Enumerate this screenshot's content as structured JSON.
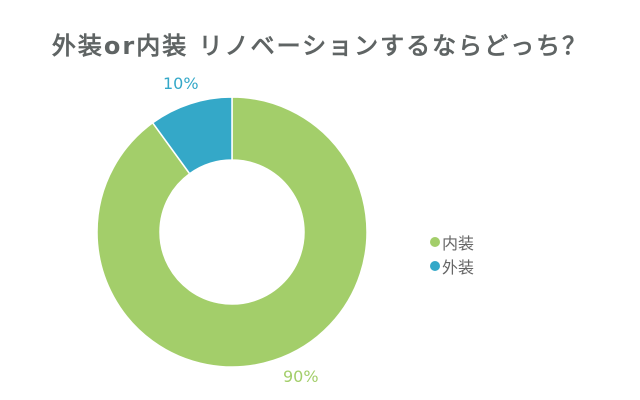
{
  "title": "外装or内装 リノベーションするならどっち？",
  "legend": {
    "items": [
      {
        "label": "内装",
        "color": "#a3ce6a"
      },
      {
        "label": "外装",
        "color": "#34a8c8"
      }
    ]
  },
  "labels": {
    "outer": "10%",
    "inner": "90%"
  },
  "chart_data": {
    "type": "pie",
    "subtype": "donut",
    "title": "外装or内装 リノベーションするならどっち？",
    "categories": [
      "内装",
      "外装"
    ],
    "values": [
      90,
      10
    ],
    "unit": "%",
    "colors": [
      "#a3ce6a",
      "#34a8c8"
    ],
    "data_labels": [
      "90%",
      "10%"
    ],
    "start_angle": "12 o'clock, clockwise",
    "legend_position": "right"
  }
}
